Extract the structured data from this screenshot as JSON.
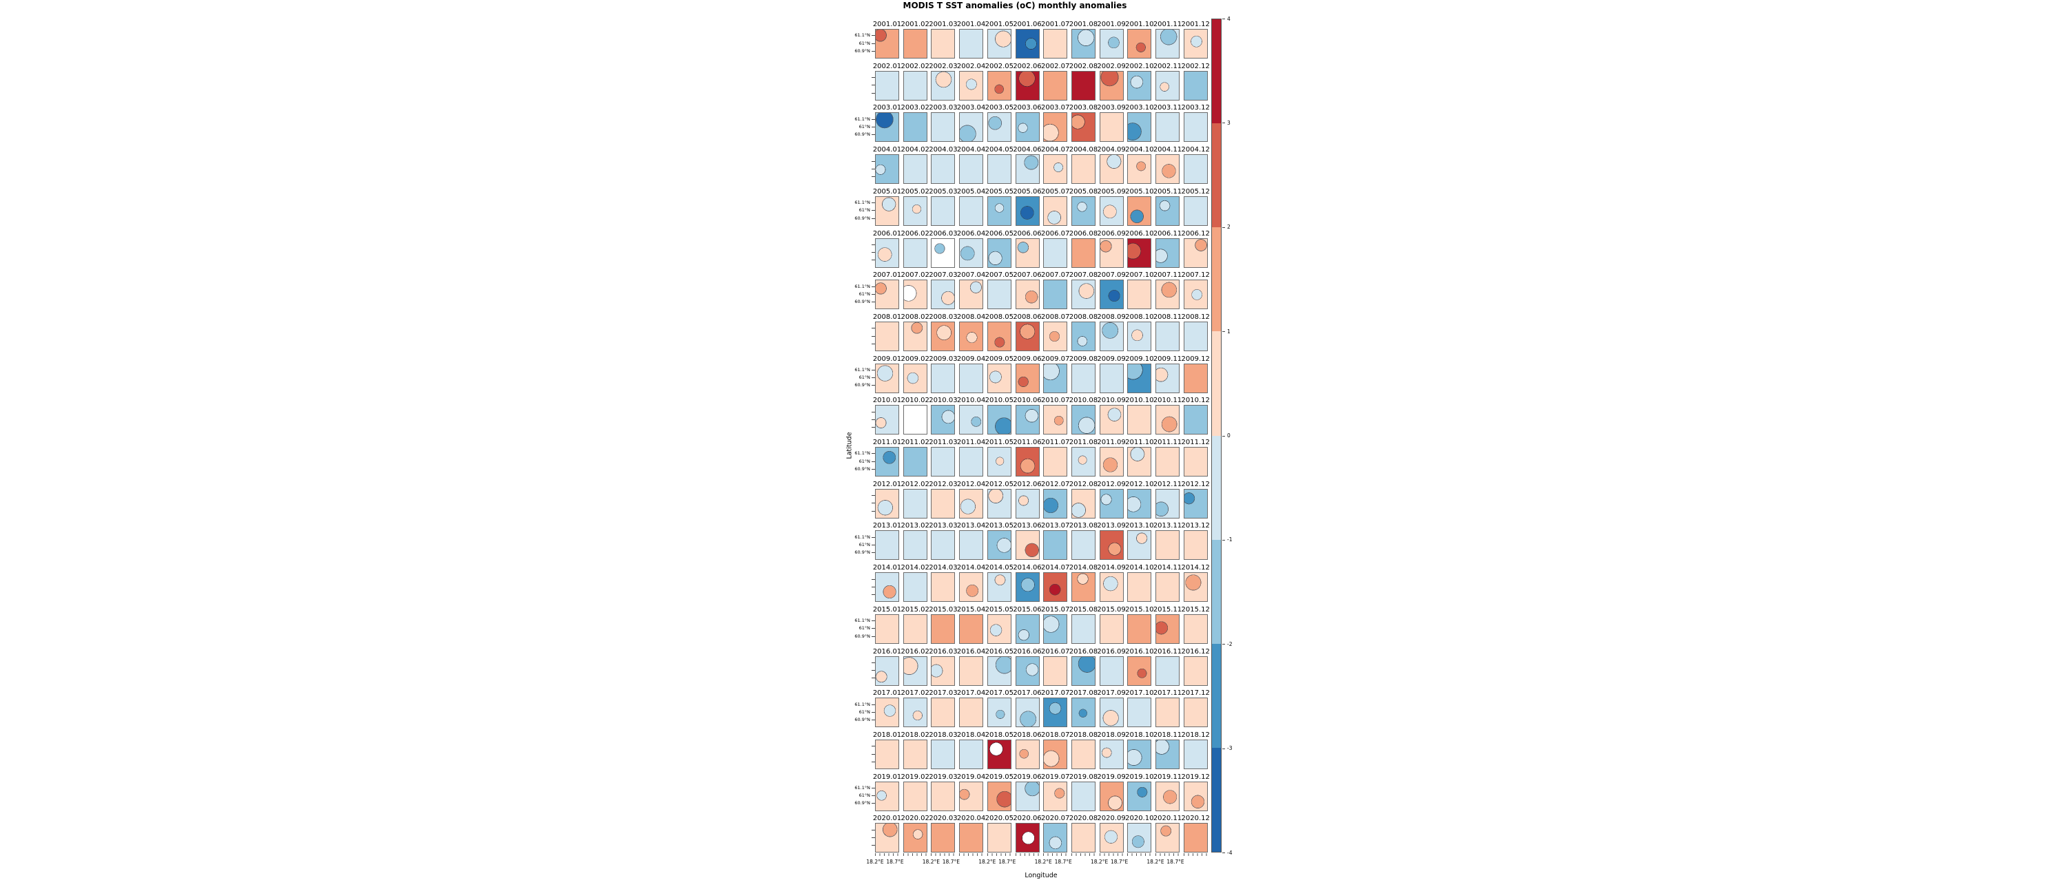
{
  "title": "MODIS T SST anomalies (oC) monthly anomalies",
  "axes": {
    "xlabel": "Longitude",
    "ylabel": "Latitude"
  },
  "ticks": {
    "x_labels": [
      "18.2°E",
      "18.7°E"
    ],
    "y_labels": [
      "61.1°N",
      "61°N",
      "60.9°N"
    ]
  },
  "colorbar": {
    "tick_labels": [
      "4",
      "3",
      "2",
      "1",
      "0",
      "-1",
      "-2",
      "-3",
      "-4"
    ],
    "colors_top_to_bottom": [
      "#b2182b",
      "#d6604d",
      "#f4a582",
      "#fddbc7",
      "#d1e5f0",
      "#92c5de",
      "#4393c3",
      "#2166ac"
    ]
  },
  "palette": {
    "4": "#b2182b",
    "3": "#d6604d",
    "2": "#f4a582",
    "1": "#fddbc7",
    "0": "#ffffff",
    "-1": "#d1e5f0",
    "-2": "#92c5de",
    "-3": "#4393c3",
    "-4": "#2166ac"
  },
  "chart_data": {
    "type": "heatmap",
    "title": "MODIS T SST anomalies (oC) monthly anomalies",
    "xlabel": "Longitude",
    "ylabel": "Latitude",
    "facet_grid": {
      "rows": 20,
      "cols": 12,
      "facet_title_format": "year.month"
    },
    "colorbar_range": [
      -4,
      4
    ],
    "anomaly_bins_degC": {
      "4": "3 to 4",
      "3": "2 to 3",
      "2": "1 to 2",
      "1": "0 to 1",
      "0": "no data (white)",
      "-1": "-1 to 0",
      "-2": "-2 to -1",
      "-3": "-3 to -2",
      "-4": "-4 to -3"
    },
    "lon_tick_labels": [
      "18.2°E",
      "18.7°E"
    ],
    "lat_tick_labels": [
      "61.1°N",
      "61°N",
      "60.9°N"
    ],
    "months": [
      "01",
      "02",
      "03",
      "04",
      "05",
      "06",
      "07",
      "08",
      "09",
      "10",
      "11",
      "12"
    ],
    "rows": [
      {
        "year": "2001",
        "dominant": [
          2,
          2,
          1,
          -1,
          -1,
          -4,
          1,
          -2,
          -1,
          2,
          -1,
          1
        ],
        "secondary": [
          3,
          null,
          null,
          null,
          1,
          -3,
          null,
          -1,
          -2,
          3,
          -2,
          -1
        ]
      },
      {
        "year": "2002",
        "dominant": [
          -1,
          -1,
          -1,
          1,
          2,
          4,
          2,
          4,
          2,
          -2,
          -1,
          -2
        ],
        "secondary": [
          null,
          null,
          1,
          -1,
          3,
          3,
          null,
          null,
          3,
          -1,
          1,
          null
        ]
      },
      {
        "year": "2003",
        "dominant": [
          -2,
          -2,
          -1,
          -1,
          -1,
          -2,
          2,
          3,
          1,
          -2,
          -1,
          -1
        ],
        "secondary": [
          -4,
          null,
          null,
          -2,
          -2,
          -1,
          1,
          2,
          null,
          -3,
          null,
          null
        ]
      },
      {
        "year": "2004",
        "dominant": [
          -2,
          -1,
          -1,
          -1,
          -1,
          -1,
          1,
          1,
          1,
          1,
          1,
          -1
        ],
        "secondary": [
          -1,
          null,
          null,
          null,
          null,
          -2,
          -1,
          null,
          -1,
          2,
          2,
          null
        ]
      },
      {
        "year": "2005",
        "dominant": [
          1,
          -1,
          -1,
          -1,
          -2,
          -3,
          1,
          -2,
          -1,
          2,
          -2,
          -1
        ],
        "secondary": [
          -1,
          1,
          null,
          null,
          -1,
          -4,
          -1,
          -1,
          1,
          -3,
          -1,
          null
        ]
      },
      {
        "year": "2006",
        "dominant": [
          -1,
          -1,
          0,
          -1,
          -2,
          1,
          -1,
          2,
          1,
          4,
          -2,
          1
        ],
        "secondary": [
          1,
          null,
          -2,
          -2,
          -1,
          -2,
          null,
          null,
          2,
          3,
          -1,
          2
        ]
      },
      {
        "year": "2007",
        "dominant": [
          1,
          1,
          -1,
          1,
          -1,
          1,
          -2,
          -1,
          -3,
          1,
          1,
          1
        ],
        "secondary": [
          2,
          0,
          1,
          -1,
          null,
          2,
          null,
          1,
          -4,
          null,
          2,
          -1
        ]
      },
      {
        "year": "2008",
        "dominant": [
          1,
          1,
          2,
          2,
          2,
          3,
          1,
          -2,
          -1,
          -1,
          -1,
          -1
        ],
        "secondary": [
          null,
          2,
          1,
          1,
          3,
          2,
          2,
          -1,
          -2,
          1,
          null,
          null
        ]
      },
      {
        "year": "2009",
        "dominant": [
          1,
          1,
          -1,
          -1,
          1,
          2,
          -2,
          -1,
          -1,
          -3,
          -1,
          2
        ],
        "secondary": [
          -1,
          -1,
          null,
          null,
          -1,
          3,
          -1,
          null,
          null,
          -2,
          1,
          null
        ]
      },
      {
        "year": "2010",
        "dominant": [
          -1,
          0,
          -2,
          -1,
          -2,
          -2,
          1,
          -2,
          1,
          1,
          1,
          -2
        ],
        "secondary": [
          1,
          null,
          -1,
          -2,
          -3,
          -1,
          2,
          -1,
          -1,
          null,
          2,
          null
        ]
      },
      {
        "year": "2011",
        "dominant": [
          -2,
          -2,
          -1,
          -1,
          -1,
          3,
          1,
          -1,
          1,
          1,
          1,
          1
        ],
        "secondary": [
          -3,
          null,
          null,
          null,
          1,
          2,
          null,
          1,
          2,
          -1,
          null,
          null
        ]
      },
      {
        "year": "2012",
        "dominant": [
          1,
          -1,
          1,
          1,
          -1,
          -1,
          -2,
          1,
          -2,
          -2,
          -1,
          -2
        ],
        "secondary": [
          -1,
          null,
          null,
          -1,
          1,
          1,
          -3,
          -1,
          -1,
          -1,
          -2,
          -3
        ]
      },
      {
        "year": "2013",
        "dominant": [
          -1,
          -1,
          -1,
          -1,
          -2,
          1,
          -2,
          -1,
          3,
          -1,
          1,
          1
        ],
        "secondary": [
          null,
          null,
          null,
          null,
          -1,
          3,
          null,
          null,
          2,
          1,
          null,
          null
        ]
      },
      {
        "year": "2014",
        "dominant": [
          -1,
          -1,
          1,
          1,
          -1,
          -3,
          3,
          2,
          1,
          1,
          1,
          1
        ],
        "secondary": [
          2,
          null,
          null,
          2,
          1,
          -2,
          4,
          1,
          -1,
          null,
          null,
          2
        ]
      },
      {
        "year": "2015",
        "dominant": [
          1,
          1,
          2,
          2,
          1,
          -2,
          -2,
          -1,
          1,
          2,
          2,
          1
        ],
        "secondary": [
          null,
          null,
          null,
          null,
          -1,
          -1,
          -1,
          null,
          null,
          null,
          3,
          null
        ]
      },
      {
        "year": "2016",
        "dominant": [
          -1,
          -1,
          1,
          1,
          -1,
          -2,
          1,
          -2,
          -1,
          2,
          -1,
          1
        ],
        "secondary": [
          1,
          1,
          -1,
          null,
          -2,
          -1,
          null,
          -3,
          null,
          3,
          null,
          null
        ]
      },
      {
        "year": "2017",
        "dominant": [
          1,
          -1,
          1,
          1,
          -1,
          -1,
          -3,
          -2,
          -1,
          -1,
          1,
          1
        ],
        "secondary": [
          -1,
          1,
          null,
          null,
          -2,
          -2,
          -2,
          -3,
          1,
          null,
          null,
          null
        ]
      },
      {
        "year": "2018",
        "dominant": [
          1,
          1,
          -1,
          -1,
          4,
          1,
          2,
          1,
          -1,
          -2,
          -2,
          -1
        ],
        "secondary": [
          null,
          null,
          null,
          null,
          0,
          2,
          1,
          null,
          1,
          -1,
          -1,
          null
        ]
      },
      {
        "year": "2019",
        "dominant": [
          1,
          1,
          1,
          1,
          2,
          -1,
          1,
          -1,
          2,
          -2,
          1,
          1
        ],
        "secondary": [
          -1,
          null,
          null,
          2,
          3,
          -2,
          2,
          null,
          1,
          -3,
          2,
          2
        ]
      },
      {
        "year": "2020",
        "dominant": [
          1,
          2,
          2,
          2,
          1,
          4,
          -2,
          1,
          1,
          -1,
          1,
          2
        ],
        "secondary": [
          2,
          1,
          null,
          null,
          null,
          0,
          -1,
          null,
          -1,
          -2,
          2,
          null
        ]
      }
    ]
  }
}
